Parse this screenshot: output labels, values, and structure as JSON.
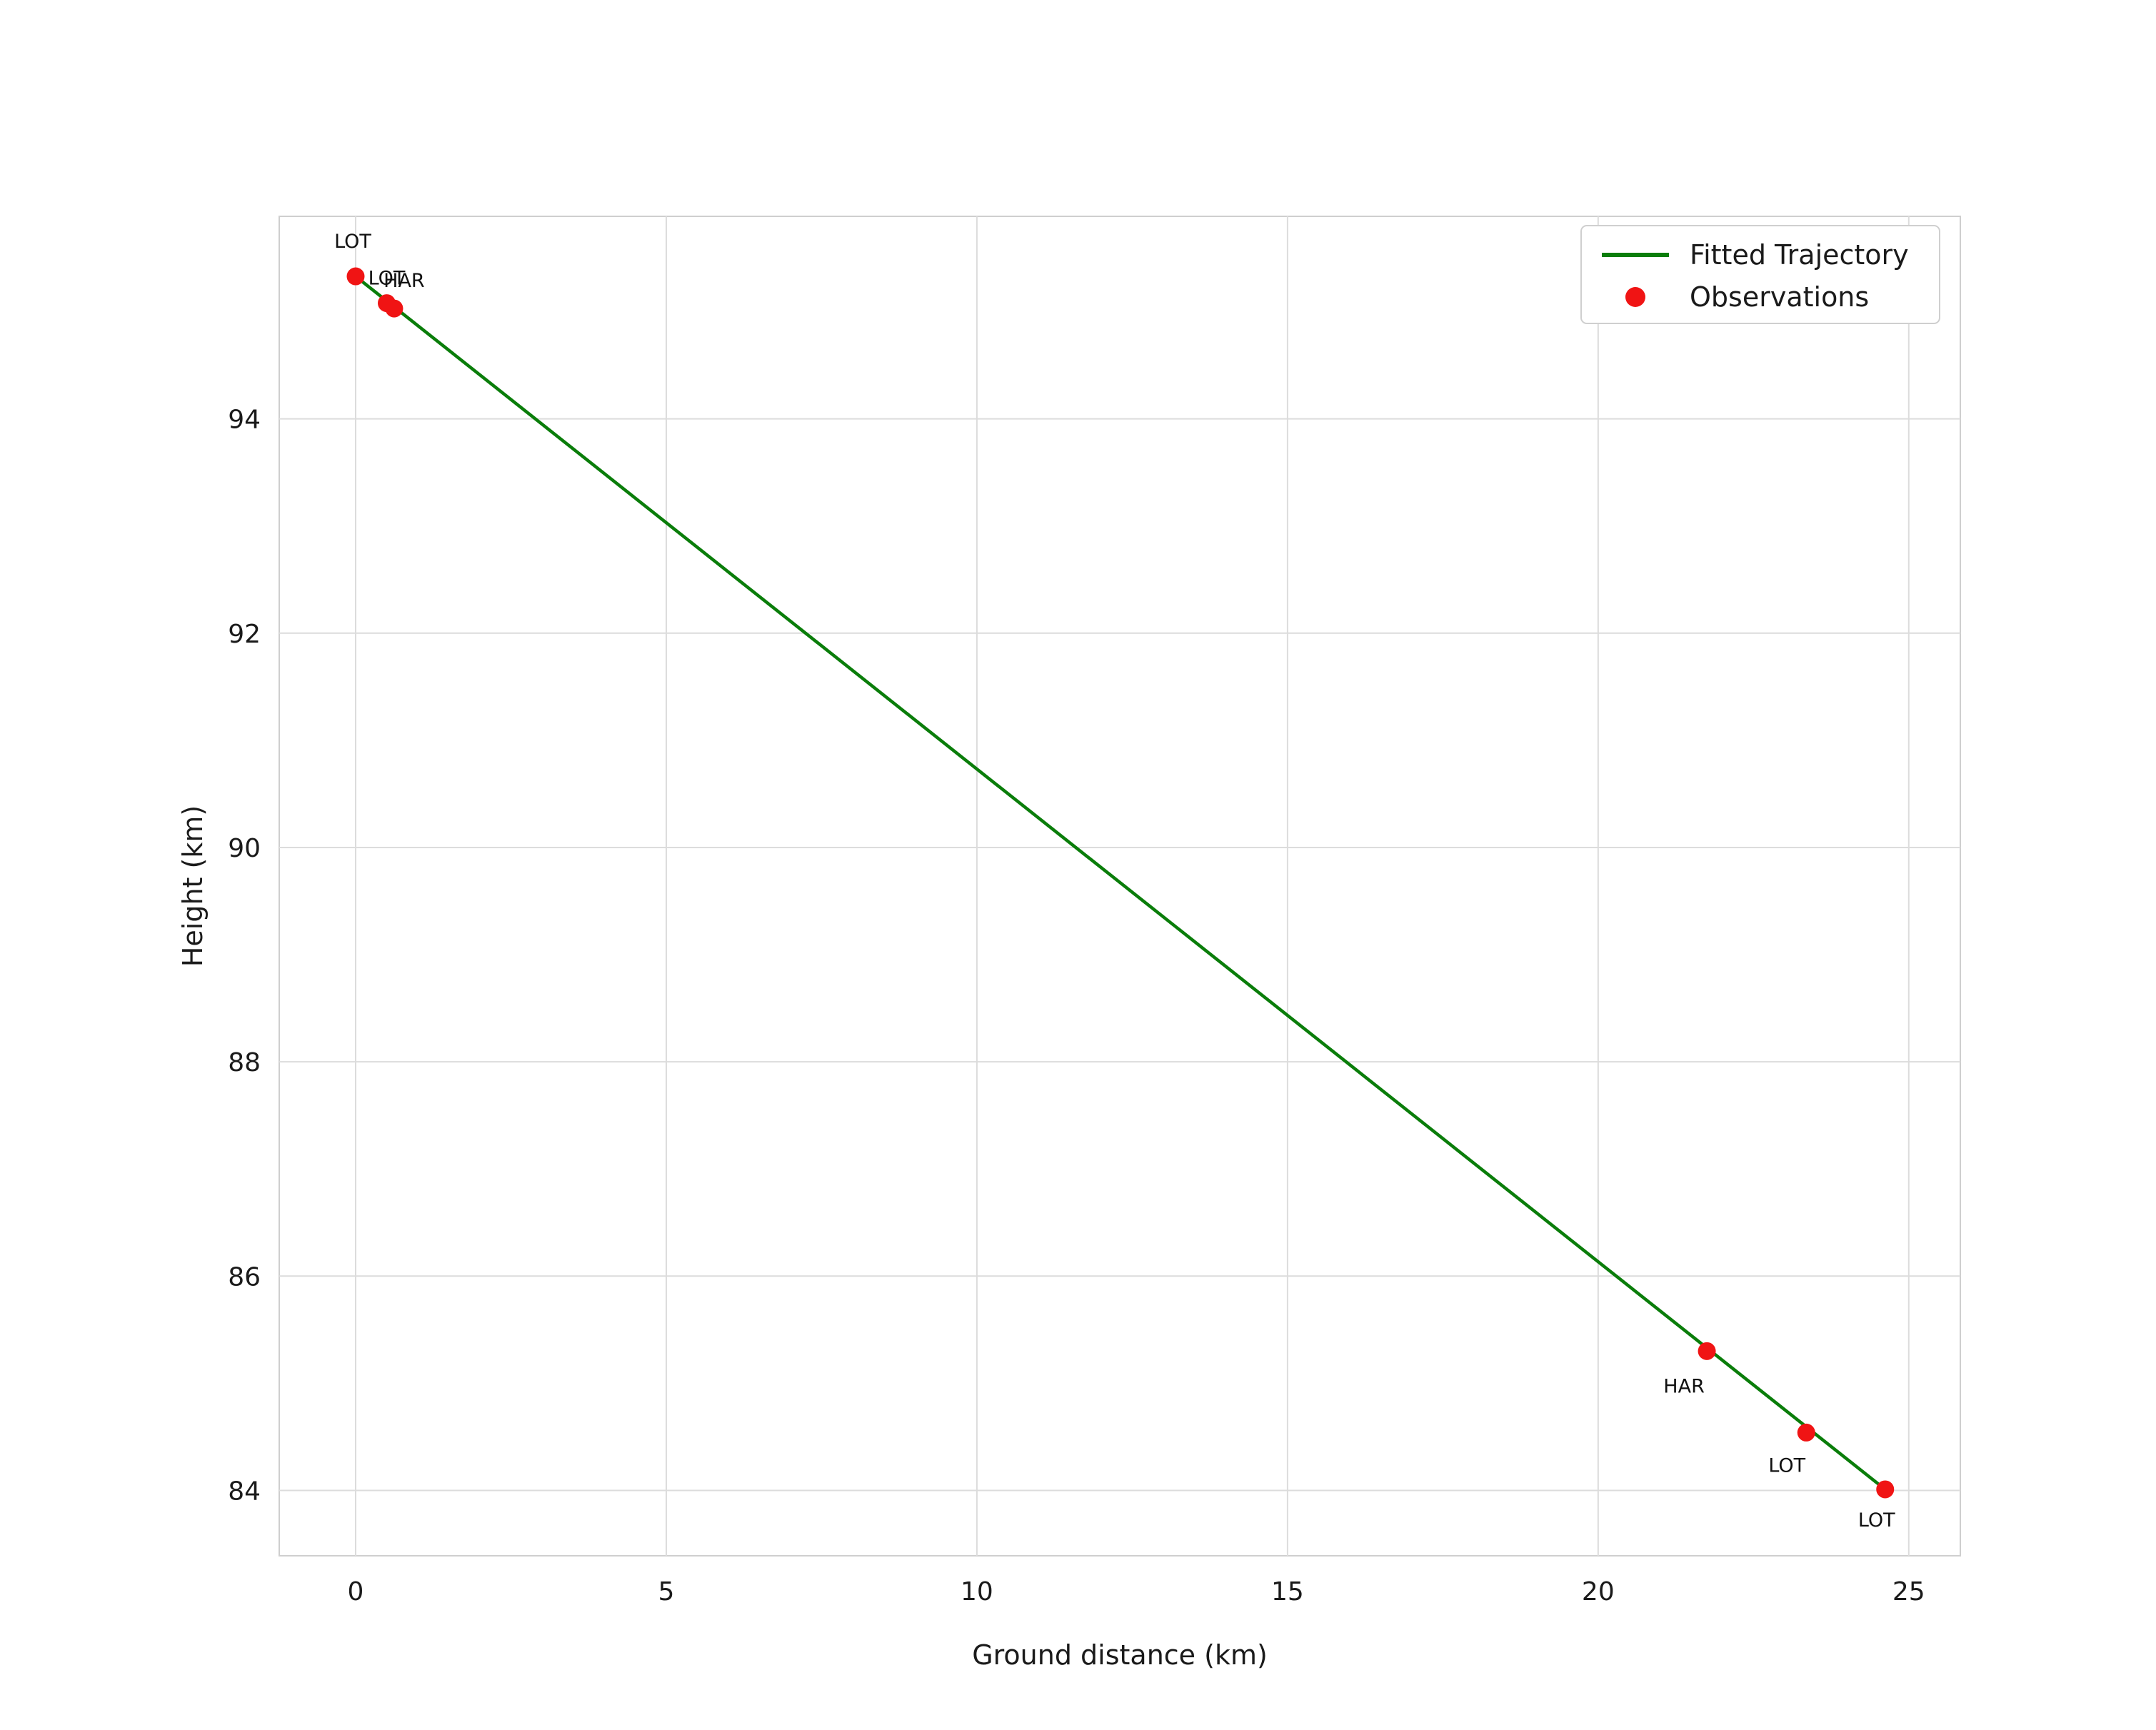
{
  "chart_data": {
    "type": "line",
    "title": "",
    "xlabel": "Ground distance (km)",
    "ylabel": "Height (km)",
    "xlim": [
      -1.23,
      25.83
    ],
    "ylim": [
      83.39,
      95.89
    ],
    "xticks": [
      0,
      5,
      10,
      15,
      20,
      25
    ],
    "yticks": [
      84,
      86,
      88,
      90,
      92,
      94
    ],
    "grid": true,
    "style": {
      "line_color": "#0a7d0a",
      "marker_color": "#f01414",
      "grid_color": "#dcdcdc",
      "border_color": "#cfcfcf",
      "background": "#ffffff",
      "text_color": "#1a1a1a"
    },
    "legend": {
      "position": "upper right",
      "entries": [
        {
          "label": "Fitted Trajectory",
          "type": "line"
        },
        {
          "label": "Observations",
          "type": "marker"
        }
      ]
    },
    "series": [
      {
        "name": "Fitted Trajectory",
        "type": "line",
        "points": [
          {
            "x": 0.0,
            "y": 95.33
          },
          {
            "x": 24.62,
            "y": 84.01
          }
        ]
      },
      {
        "name": "Observations",
        "type": "scatter",
        "points": [
          {
            "x": 0.0,
            "y": 95.33,
            "label": "LOT",
            "dx": -4,
            "dy": -40
          },
          {
            "x": 0.5,
            "y": 95.08,
            "label": "LOT",
            "dx": 0,
            "dy": -26
          },
          {
            "x": 0.62,
            "y": 95.03,
            "label": "HAR",
            "dx": 14,
            "dy": -30
          },
          {
            "x": 21.75,
            "y": 85.3,
            "label": "HAR",
            "dx": -32,
            "dy": 58
          },
          {
            "x": 23.35,
            "y": 84.54,
            "label": "LOT",
            "dx": -27,
            "dy": 55
          },
          {
            "x": 24.62,
            "y": 84.01,
            "label": "LOT",
            "dx": -12,
            "dy": 52
          }
        ]
      }
    ]
  }
}
